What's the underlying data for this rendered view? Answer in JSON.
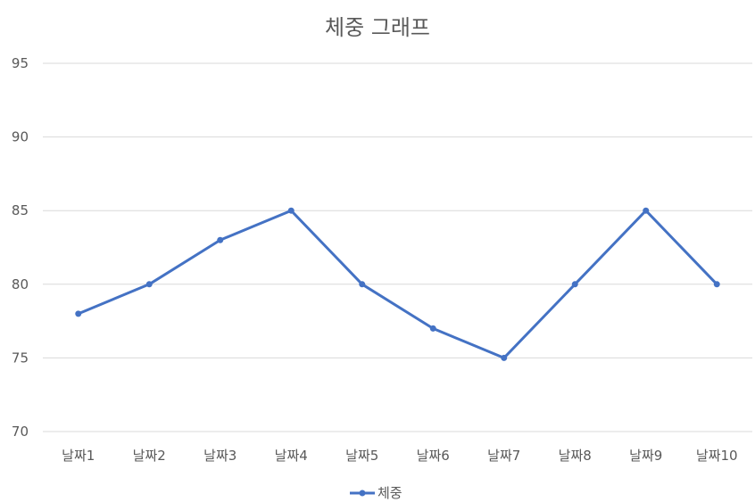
{
  "chart_data": {
    "type": "line",
    "title": "체중 그래프",
    "categories": [
      "날짜1",
      "날짜2",
      "날짜3",
      "날짜4",
      "날짜5",
      "날짜6",
      "날짜7",
      "날짜8",
      "날짜9",
      "날짜10"
    ],
    "series": [
      {
        "name": "체중",
        "values": [
          78,
          80,
          83,
          85,
          80,
          77,
          75,
          80,
          85,
          80
        ],
        "color": "#4472C4"
      }
    ],
    "ylim": [
      70,
      95
    ],
    "yticks": [
      70,
      75,
      80,
      85,
      90,
      95
    ],
    "xlabel": "",
    "ylabel": "",
    "grid": true,
    "gridColor": "#D9D9D9",
    "legend": "bottom"
  }
}
